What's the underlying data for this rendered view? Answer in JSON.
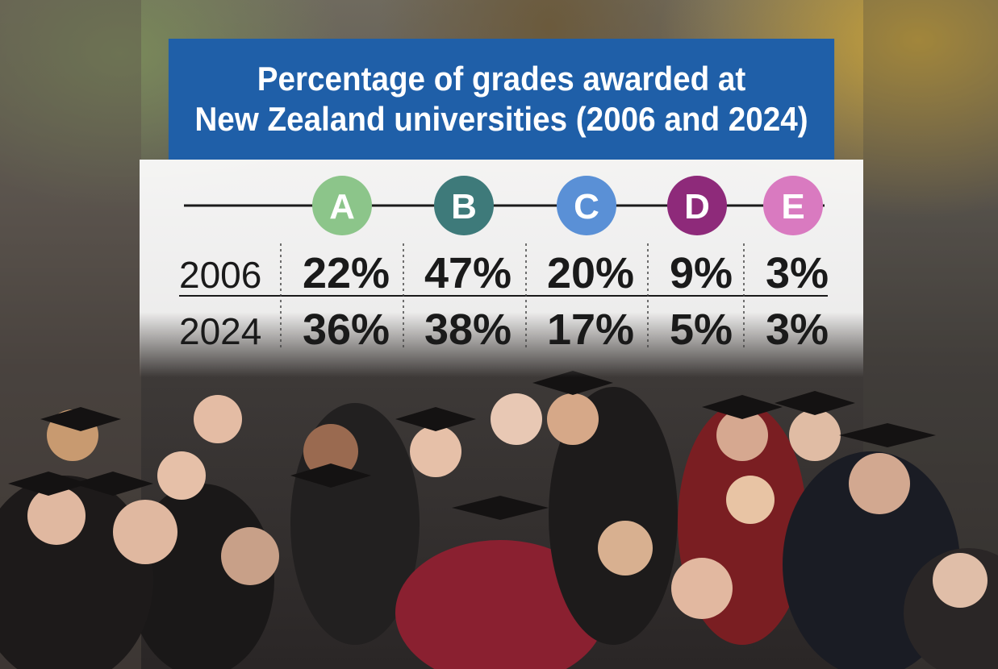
{
  "title_line1": "Percentage of grades awarded at",
  "title_line2": "New Zealand universities (2006 and 2024)",
  "colors": {
    "title_bg": "#1f5fa8",
    "A": "#8cc58a",
    "B": "#3e7a7a",
    "C": "#5a90d6",
    "D": "#8e2a7a",
    "E": "#d97ac0"
  },
  "chart_data": {
    "type": "table",
    "categories": [
      "A",
      "B",
      "C",
      "D",
      "E"
    ],
    "series": [
      {
        "name": "2006",
        "values": [
          "22%",
          "47%",
          "20%",
          "9%",
          "3%"
        ]
      },
      {
        "name": "2024",
        "values": [
          "36%",
          "38%",
          "17%",
          "5%",
          "3%"
        ]
      }
    ]
  }
}
